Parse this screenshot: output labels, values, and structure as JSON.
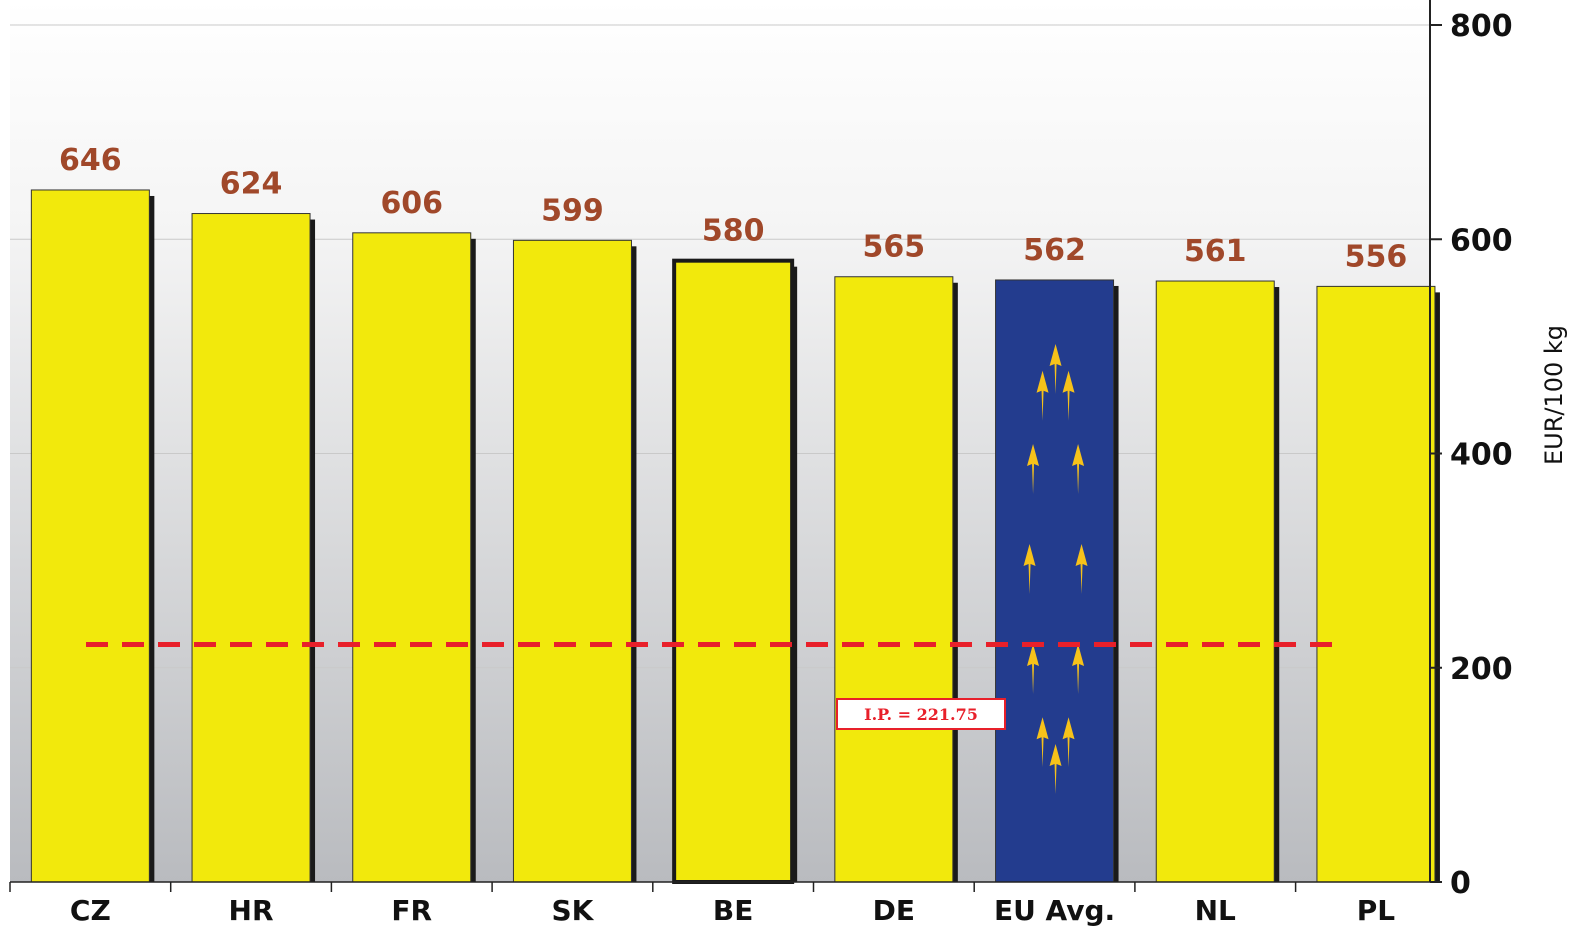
{
  "chart_data": {
    "type": "bar",
    "categories": [
      "CZ",
      "HR",
      "FR",
      "SK",
      "BE",
      "DE",
      "EU Avg.",
      "NL",
      "PL"
    ],
    "values": [
      646,
      624,
      606,
      599,
      580,
      565,
      562,
      561,
      556
    ],
    "value_labels": [
      "646",
      "624",
      "606",
      "599",
      "580",
      "565",
      "562",
      "561",
      "556"
    ],
    "ylabel": "EUR/100 kg",
    "ylim": [
      0,
      800
    ],
    "yticks": [
      0,
      200,
      400,
      600,
      800
    ],
    "y_axis_position": "right",
    "grid": true,
    "reference_line": {
      "value": 221.75,
      "label": "I.P. = 221.75",
      "color": "#e8202a",
      "style": "dashed"
    },
    "highlight": {
      "BE": "outlined",
      "EU Avg.": "eu-flag"
    },
    "colors": {
      "bar": "#f2e90c",
      "eu_bar": "#233c8e",
      "eu_star": "#f7c21a",
      "value_label": "#a0482a",
      "bar_shadow": "#1a1a1a"
    }
  }
}
